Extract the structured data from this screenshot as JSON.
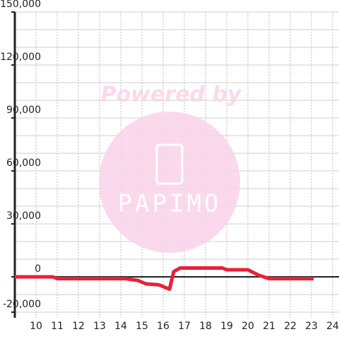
{
  "chart_data": {
    "type": "line",
    "annotations": [
      "Powered by",
      "PAPIMO"
    ],
    "x": [
      9,
      10.8,
      11,
      14.2,
      14.8,
      15.2,
      15.8,
      16.3,
      16.5,
      16.8,
      18.8,
      19,
      20,
      20.5,
      21,
      23.1
    ],
    "series": [
      {
        "name": null,
        "color": "#e8213a",
        "values": [
          0,
          0,
          -1000,
          -1000,
          -2000,
          -4000,
          -4500,
          -7000,
          3000,
          5000,
          5000,
          4000,
          4000,
          1000,
          -1000,
          -1000
        ]
      }
    ],
    "xlim": [
      9,
      24.3
    ],
    "xticks": [
      10,
      11,
      12,
      13,
      14,
      15,
      16,
      17,
      18,
      19,
      20,
      21,
      22,
      23,
      24
    ],
    "ylim": [
      -23200,
      150000
    ],
    "yticks": [
      {
        "value": -20000,
        "label": "-20,000"
      },
      0,
      {
        "value": 30000,
        "label": "30,000"
      },
      {
        "value": 60000,
        "label": "60,000"
      },
      {
        "value": 90000,
        "label": "90,000"
      },
      {
        "value": 120000,
        "label": "120,000"
      },
      {
        "value": 150000,
        "label": "150,000"
      }
    ],
    "minor_yticks": [
      -10000,
      10000,
      20000,
      40000,
      50000,
      70000,
      80000,
      100000,
      110000,
      130000,
      140000
    ],
    "grid": true
  }
}
